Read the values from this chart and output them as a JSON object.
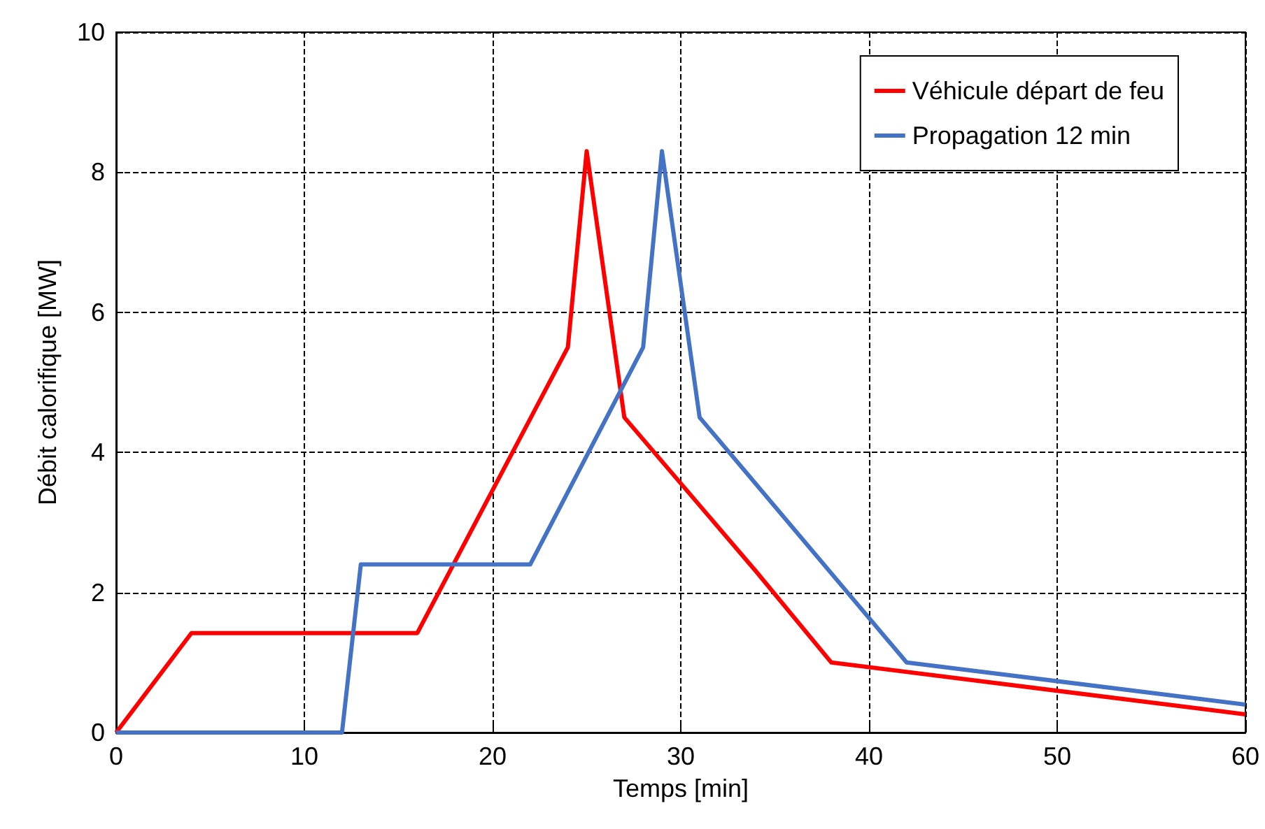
{
  "chart_data": {
    "type": "line",
    "xlabel": "Temps [min]",
    "ylabel": "Débit calorifique [MW]",
    "xlim": [
      0,
      60
    ],
    "xticks": [
      0,
      10,
      20,
      30,
      40,
      50,
      60
    ],
    "ylim": [
      0,
      10
    ],
    "yticks": [
      0,
      2,
      4,
      6,
      8,
      10
    ],
    "grid": true,
    "legend": "top right",
    "marker": "none",
    "line_style": "solid",
    "series": [
      {
        "name": "Véhicule départ de feu",
        "color": "#ff0000",
        "x": [
          0,
          4,
          16,
          24,
          25,
          27,
          34,
          38,
          60
        ],
        "values": [
          0,
          1.42,
          1.42,
          5.5,
          8.3,
          4.5,
          2.3,
          1.0,
          0.26
        ]
      },
      {
        "name": "Propagation 12 min",
        "color": "#4472c4",
        "x": [
          0,
          12,
          13,
          22,
          28,
          29,
          31,
          42,
          60
        ],
        "values": [
          0,
          0,
          2.4,
          2.4,
          5.5,
          8.3,
          4.5,
          1.0,
          0.4
        ]
      }
    ]
  }
}
